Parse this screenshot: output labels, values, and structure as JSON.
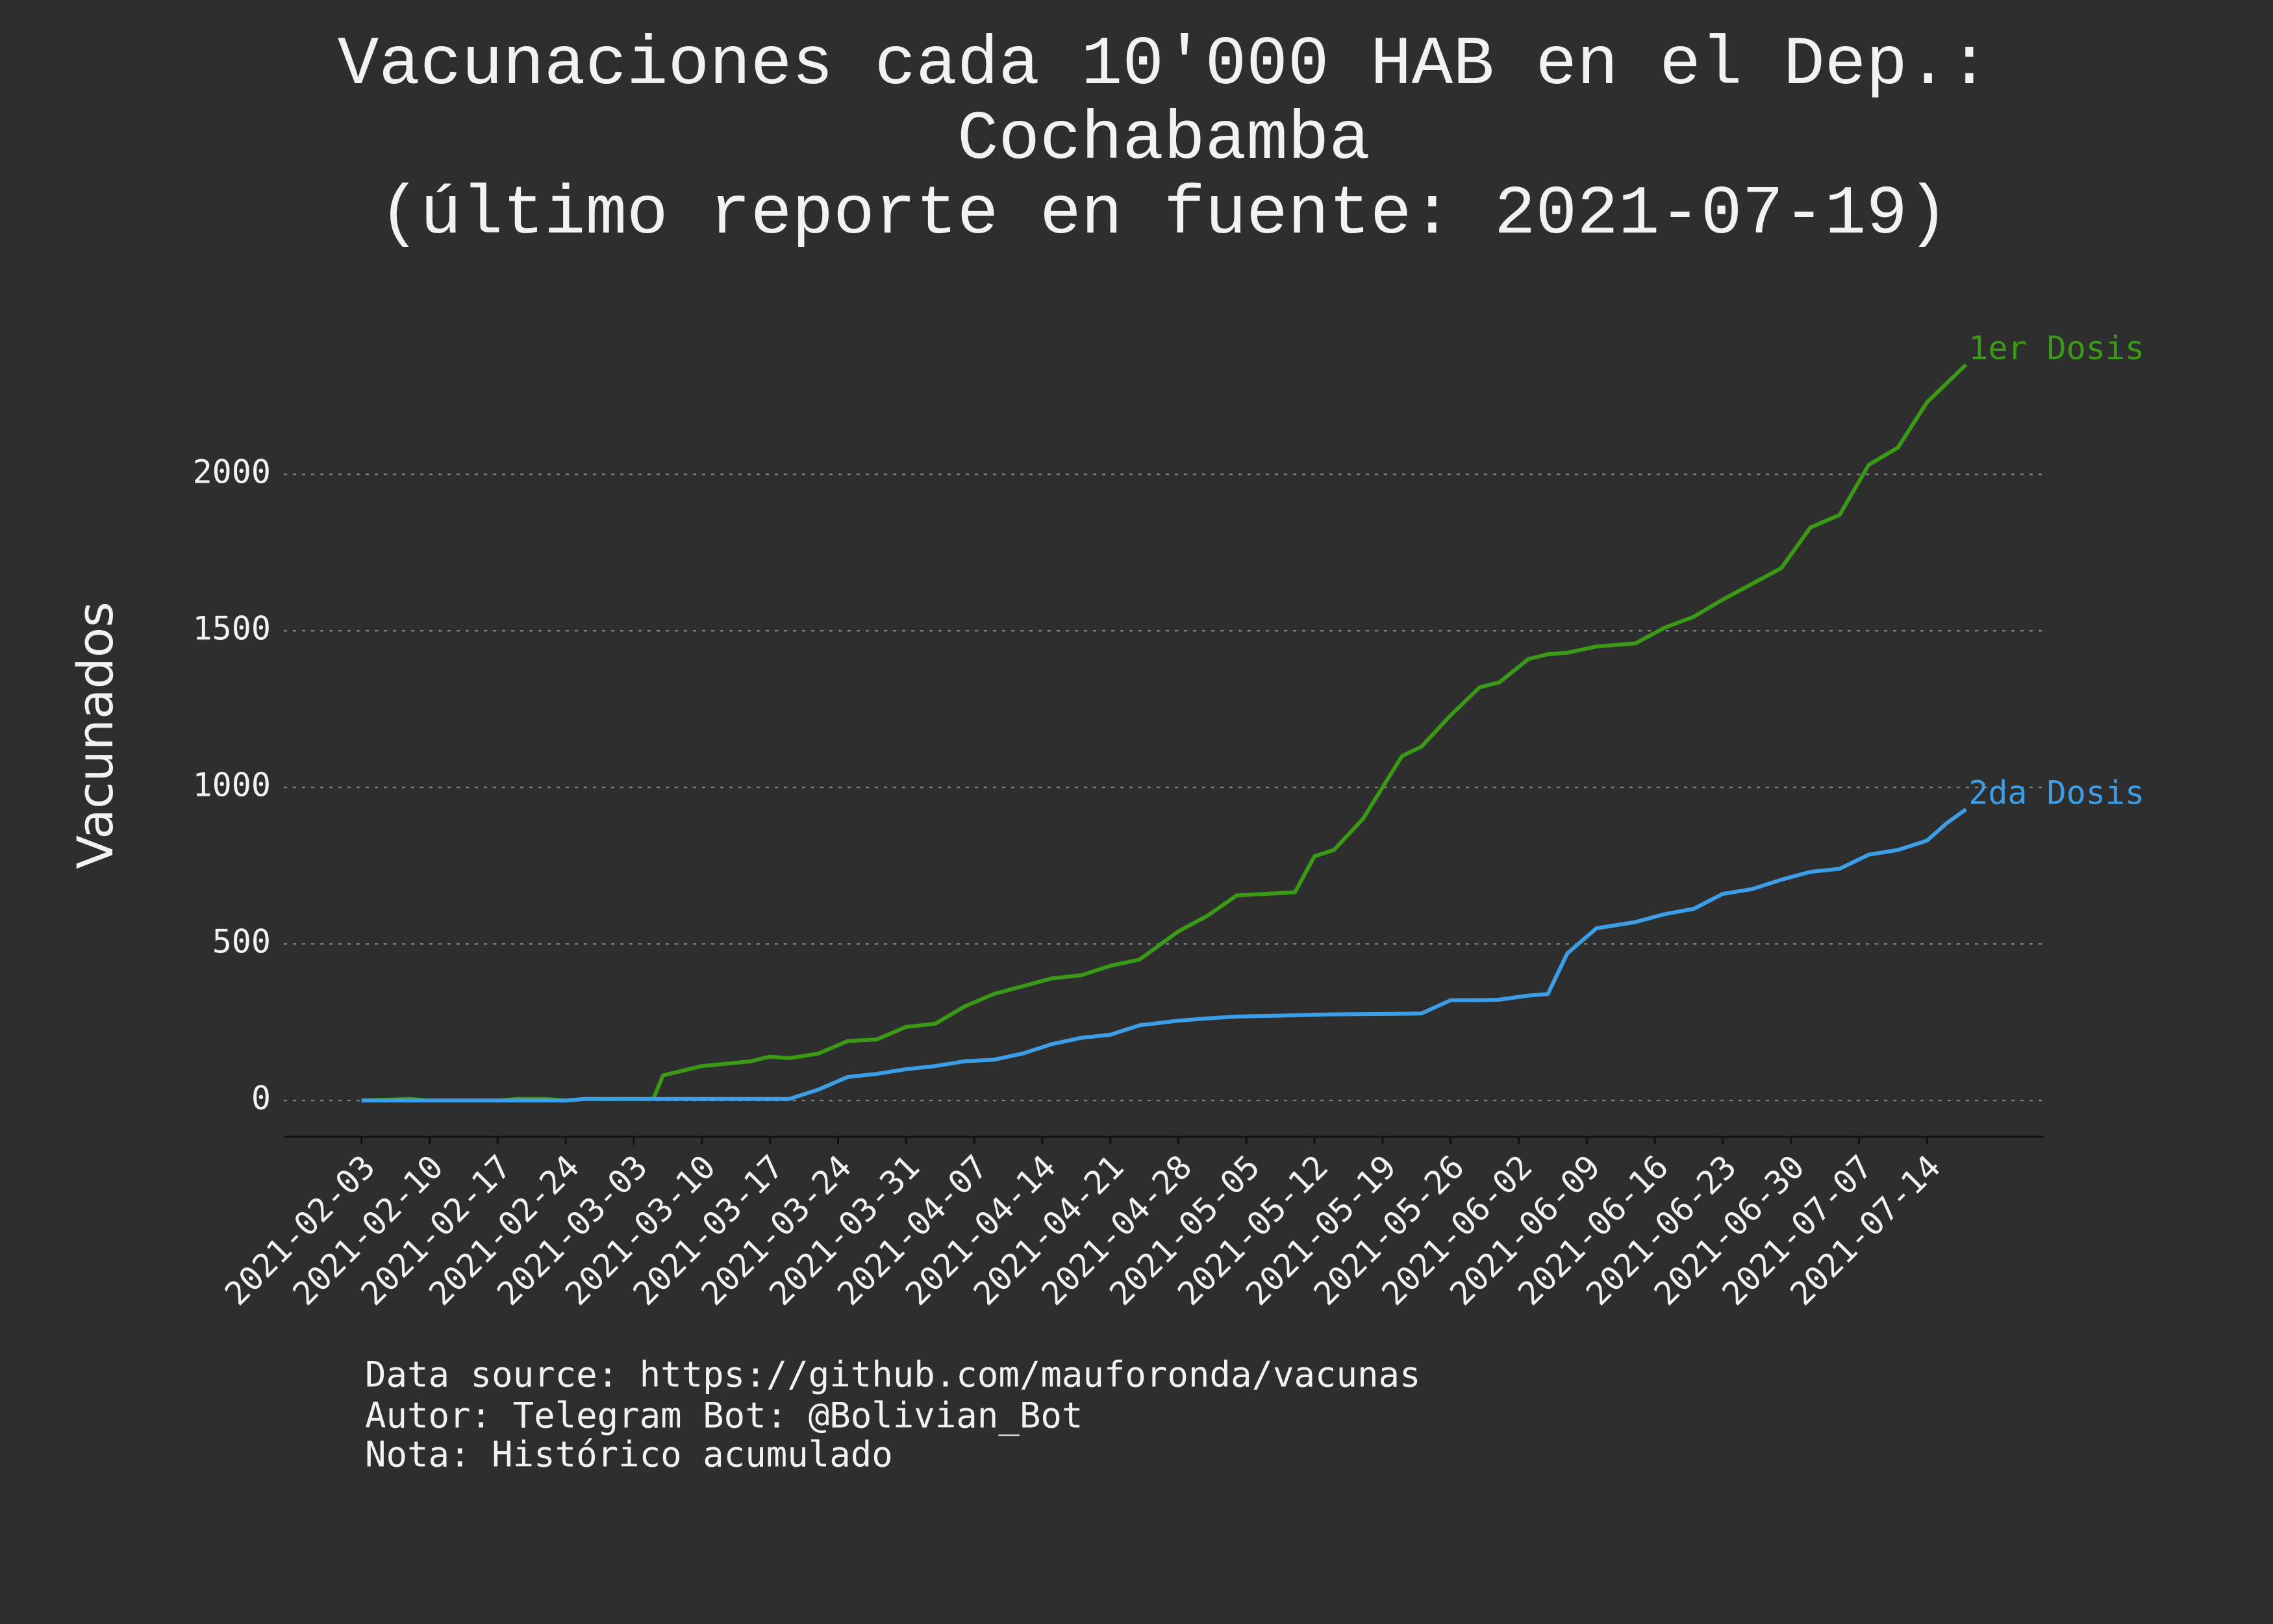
{
  "chart_data": {
    "type": "line",
    "title": [
      "Vacunaciones cada 10'000 HAB en el Dep.:",
      "Cochabamba",
      "(último reporte en fuente: 2021-07-19)"
    ],
    "ylabel": "Vacunados",
    "notes": [
      "Data source: https://github.com/mauforonda/vacunas",
      "Autor: Telegram Bot: @Bolivian_Bot",
      "Nota: Histórico acumulado"
    ],
    "x": [
      "2021-02-03",
      "2021-02-08",
      "2021-02-10",
      "2021-02-17",
      "2021-02-19",
      "2021-02-22",
      "2021-02-24",
      "2021-02-26",
      "2021-03-05",
      "2021-03-06",
      "2021-03-10",
      "2021-03-15",
      "2021-03-17",
      "2021-03-19",
      "2021-03-22",
      "2021-03-25",
      "2021-03-28",
      "2021-03-31",
      "2021-04-03",
      "2021-04-06",
      "2021-04-09",
      "2021-04-12",
      "2021-04-15",
      "2021-04-18",
      "2021-04-21",
      "2021-04-24",
      "2021-04-28",
      "2021-05-01",
      "2021-05-04",
      "2021-05-10",
      "2021-05-12",
      "2021-05-14",
      "2021-05-17",
      "2021-05-21",
      "2021-05-23",
      "2021-05-26",
      "2021-05-29",
      "2021-05-31",
      "2021-06-03",
      "2021-06-05",
      "2021-06-07",
      "2021-06-10",
      "2021-06-14",
      "2021-06-17",
      "2021-06-20",
      "2021-06-23",
      "2021-06-26",
      "2021-06-29",
      "2021-07-02",
      "2021-07-05",
      "2021-07-08",
      "2021-07-11",
      "2021-07-14",
      "2021-07-16",
      "2021-07-18"
    ],
    "series": [
      {
        "name": "1er Dosis",
        "color": "#3a9a16",
        "values": [
          0,
          5,
          0,
          0,
          5,
          5,
          0,
          5,
          5,
          80,
          110,
          125,
          140,
          135,
          150,
          190,
          195,
          235,
          245,
          300,
          340,
          365,
          390,
          400,
          430,
          450,
          540,
          590,
          655,
          665,
          780,
          800,
          900,
          1100,
          1130,
          1230,
          1320,
          1335,
          1410,
          1425,
          1430,
          1450,
          1460,
          1510,
          1545,
          1600,
          1650,
          1700,
          1830,
          1870,
          2030,
          2085,
          2230,
          2290,
          2350
        ]
      },
      {
        "name": "2da Dosis",
        "color": "#3d9ee8",
        "values": [
          0,
          0,
          0,
          0,
          0,
          0,
          0,
          5,
          5,
          5,
          5,
          5,
          5,
          5,
          35,
          75,
          85,
          100,
          110,
          125,
          130,
          150,
          180,
          200,
          210,
          240,
          255,
          262,
          268,
          272,
          274,
          275,
          276,
          277,
          278,
          320,
          320,
          322,
          335,
          340,
          470,
          550,
          570,
          595,
          612,
          660,
          675,
          705,
          730,
          740,
          785,
          800,
          830,
          885,
          930
        ]
      }
    ],
    "xlim": [
      "2021-01-26",
      "2021-07-26"
    ],
    "xticks": [
      "2021-02-03",
      "2021-02-10",
      "2021-02-17",
      "2021-02-24",
      "2021-03-03",
      "2021-03-10",
      "2021-03-17",
      "2021-03-24",
      "2021-03-31",
      "2021-04-07",
      "2021-04-14",
      "2021-04-21",
      "2021-04-28",
      "2021-05-05",
      "2021-05-12",
      "2021-05-19",
      "2021-05-26",
      "2021-06-02",
      "2021-06-09",
      "2021-06-16",
      "2021-06-23",
      "2021-06-30",
      "2021-07-07",
      "2021-07-14"
    ],
    "ylim": [
      -116,
      2550
    ],
    "yticks": [
      0,
      500,
      1000,
      1500,
      2000
    ],
    "grid": true
  }
}
